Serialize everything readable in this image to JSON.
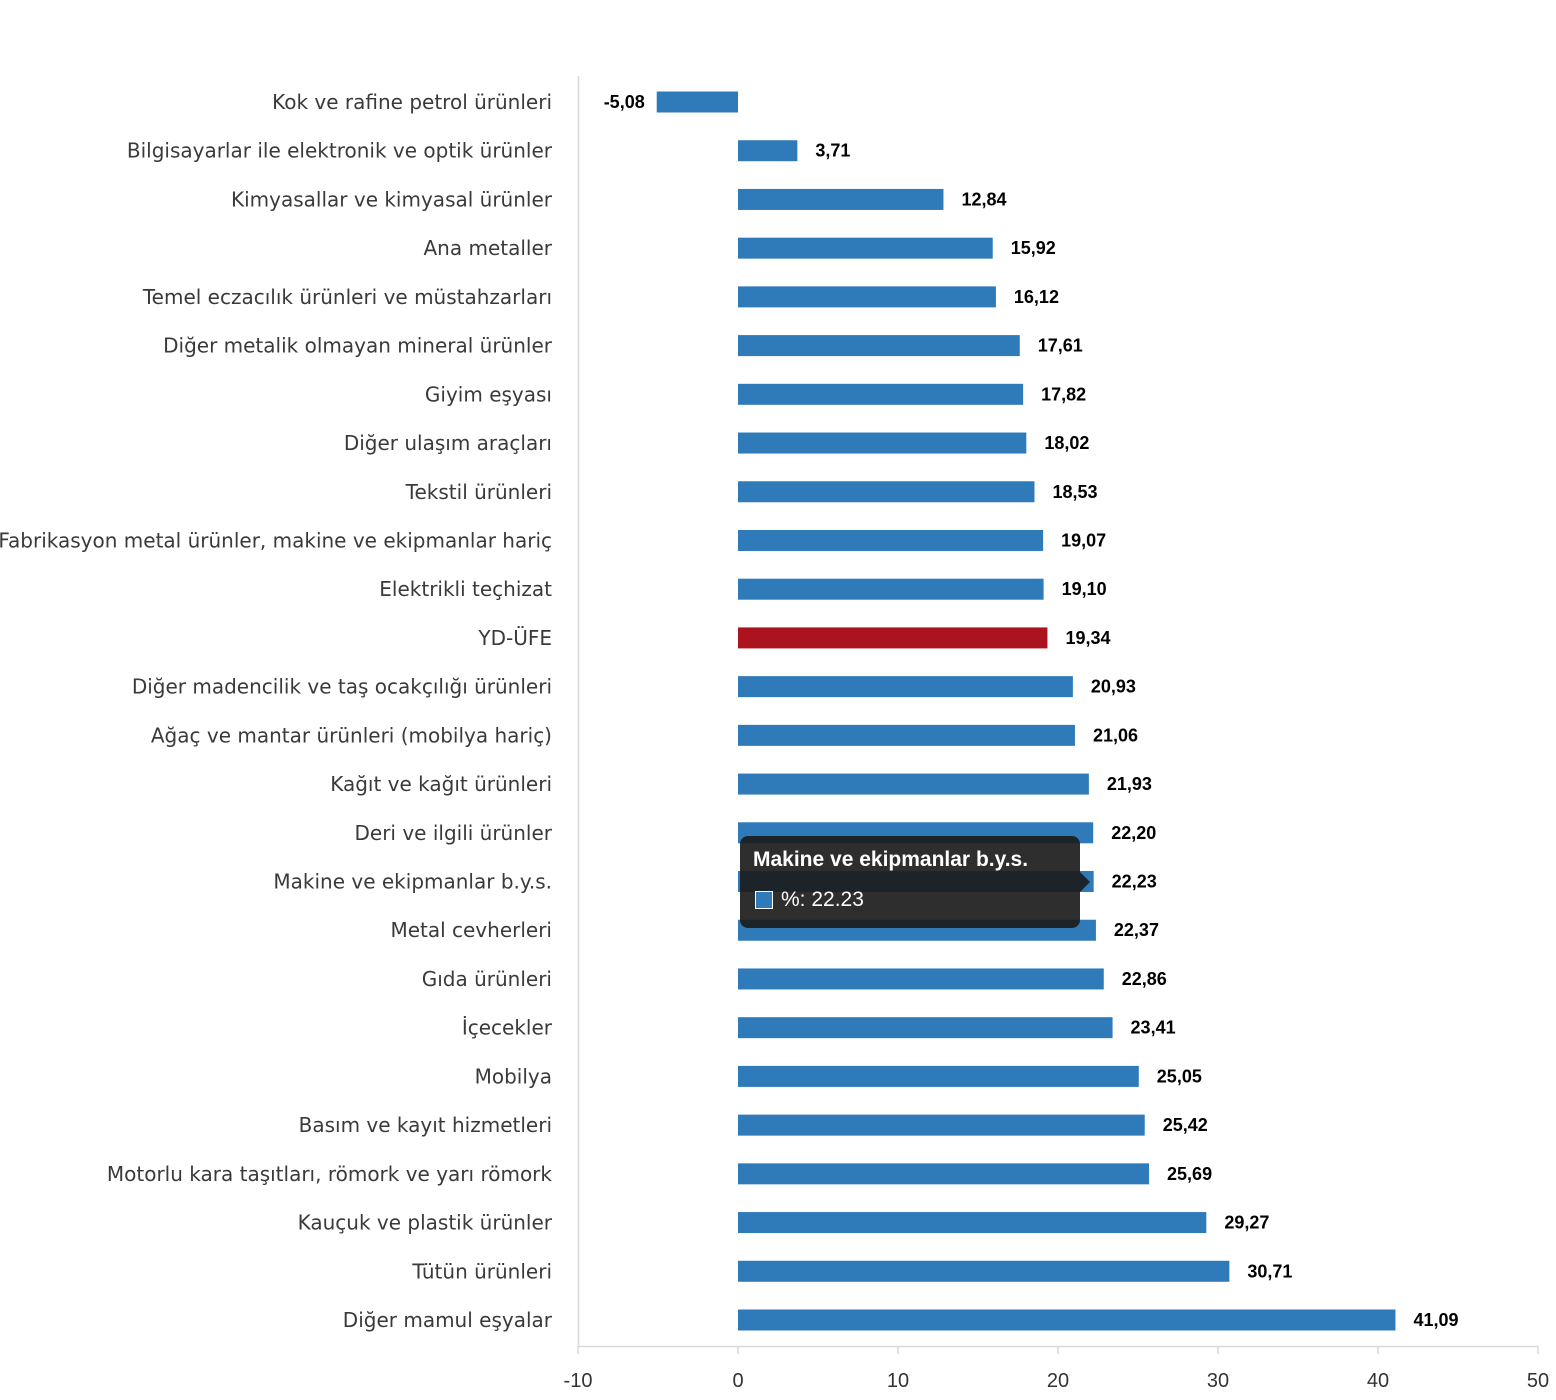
{
  "chart_data": {
    "type": "bar",
    "orientation": "horizontal",
    "categories": [
      "Kok ve rafine petrol ürünleri",
      "Bilgisayarlar ile elektronik ve optik ürünler",
      "Kimyasallar ve kimyasal ürünler",
      "Ana metaller",
      "Temel eczacılık ürünleri ve müstahzarları",
      "Diğer metalik olmayan mineral ürünler",
      "Giyim eşyası",
      "Diğer ulaşım araçları",
      "Tekstil ürünleri",
      "Fabrikasyon metal ürünler, makine ve ekipmanlar hariç",
      "Elektrikli teçhizat",
      "YD-ÜFE",
      "Diğer madencilik ve taş ocakçılığı ürünleri",
      "Ağaç ve mantar ürünleri (mobilya hariç)",
      "Kağıt ve kağıt ürünleri",
      "Deri ve ilgili ürünler",
      "Makine ve ekipmanlar b.y.s.",
      "Metal cevherleri",
      "Gıda ürünleri",
      "İçecekler",
      "Mobilya",
      "Basım ve kayıt hizmetleri",
      "Motorlu kara taşıtları, römork ve yarı römork",
      "Kauçuk ve plastik ürünler",
      "Tütün ürünleri",
      "Diğer mamul eşyalar"
    ],
    "values": [
      -5.08,
      3.71,
      12.84,
      15.92,
      16.12,
      17.61,
      17.82,
      18.02,
      18.53,
      19.07,
      19.1,
      19.34,
      20.93,
      21.06,
      21.93,
      22.2,
      22.23,
      22.37,
      22.86,
      23.41,
      25.05,
      25.42,
      25.69,
      29.27,
      30.71,
      41.09
    ],
    "value_labels": [
      "-5,08",
      "3,71",
      "12,84",
      "15,92",
      "16,12",
      "17,61",
      "17,82",
      "18,02",
      "18,53",
      "19,07",
      "19,10",
      "19,34",
      "20,93",
      "21,06",
      "21,93",
      "22,20",
      "22,23",
      "22,37",
      "22,86",
      "23,41",
      "25,05",
      "25,42",
      "25,69",
      "29,27",
      "30,71",
      "41,09"
    ],
    "highlight_category": "YD-ÜFE",
    "xlim": [
      -10,
      50
    ],
    "xticks": [
      -10,
      0,
      10,
      20,
      30,
      40,
      50
    ],
    "xtick_labels": [
      "-10",
      "0",
      "10",
      "20",
      "30",
      "40",
      "50"
    ],
    "title": "",
    "xlabel": "",
    "ylabel": "",
    "grid": false,
    "legend": "none"
  },
  "colors": {
    "bar": "#2f7ab9",
    "highlight": "#ab141e",
    "axis": "#d9d9d9",
    "tooltip_bg": "#1c1c1c"
  },
  "tooltip": {
    "title": "Makine ve ekipmanlar b.y.s.",
    "value_text": "%: 22.23"
  }
}
